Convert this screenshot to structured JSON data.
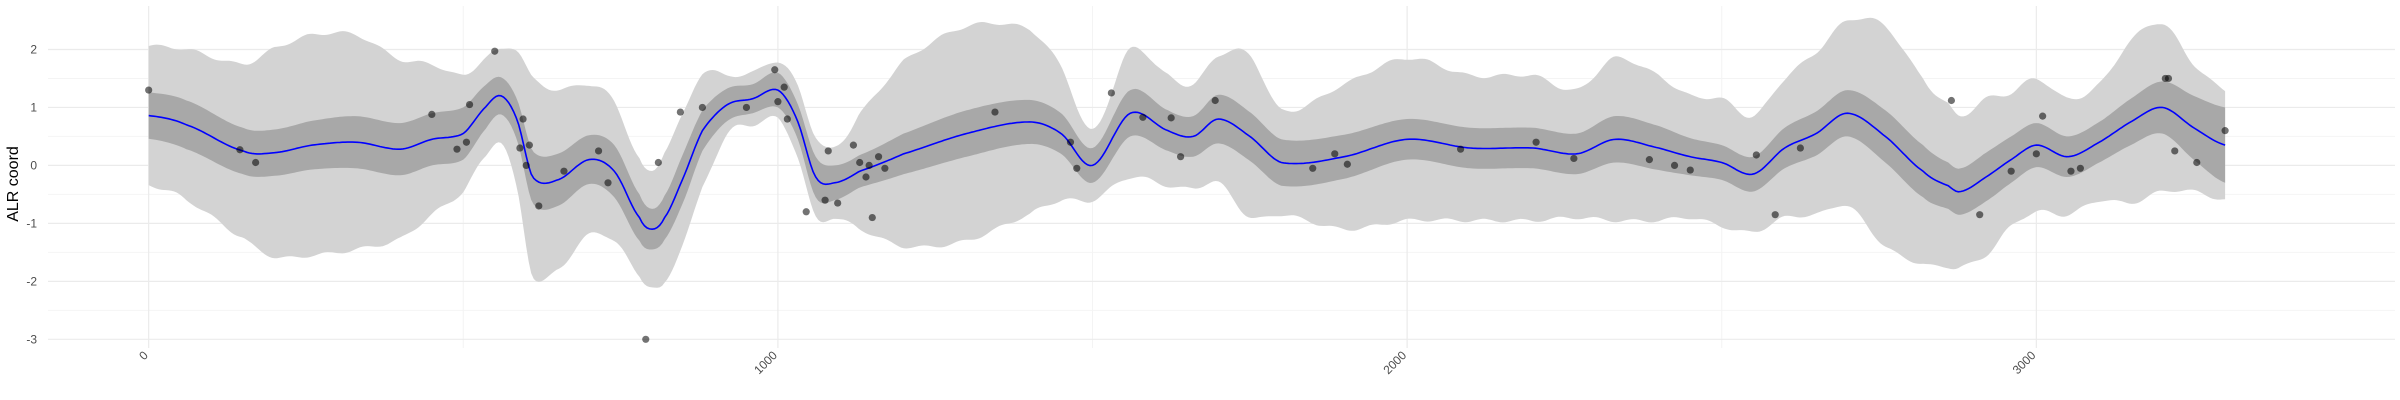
{
  "chart_data": {
    "type": "line",
    "title": "",
    "xlabel": "",
    "ylabel": "ALR coord",
    "xlim": [
      -160,
      3570
    ],
    "ylim": [
      -3.15,
      2.75
    ],
    "x_ticks": [
      0,
      1000,
      2000,
      3000
    ],
    "x_tick_labels": [
      "0",
      "1000",
      "2000",
      "3000"
    ],
    "y_ticks": [
      -3,
      -2,
      -1,
      0,
      1,
      2
    ],
    "y_tick_labels": [
      "-3",
      "-2",
      "-1",
      "0",
      "1",
      "2"
    ],
    "grid": true,
    "legend": "none",
    "colors": {
      "mean_line": "#0000ff",
      "inner_band": "#a8a8a8",
      "outer_band": "#d3d3d3",
      "points": "#000000",
      "grid_major": "#ebebeb",
      "grid_minor": "#f4f4f4"
    },
    "curve": {
      "x": [
        0,
        60,
        150,
        200,
        260,
        330,
        400,
        450,
        500,
        535,
        560,
        585,
        610,
        650,
        700,
        740,
        780,
        800,
        820,
        850,
        880,
        920,
        960,
        1000,
        1030,
        1060,
        1090,
        1130,
        1200,
        1300,
        1400,
        1450,
        1500,
        1560,
        1620,
        1660,
        1700,
        1750,
        1800,
        1900,
        2000,
        2100,
        2200,
        2270,
        2330,
        2400,
        2450,
        2500,
        2550,
        2600,
        2650,
        2700,
        2760,
        2820,
        2860,
        2880,
        2920,
        2960,
        3000,
        3050,
        3100,
        3150,
        3200,
        3250,
        3300
      ],
      "mean": [
        0.86,
        0.7,
        0.25,
        0.22,
        0.35,
        0.4,
        0.28,
        0.45,
        0.55,
        1.0,
        1.2,
        0.8,
        -0.2,
        -0.25,
        0.1,
        -0.1,
        -0.9,
        -1.1,
        -0.9,
        -0.2,
        0.6,
        1.05,
        1.15,
        1.3,
        0.8,
        -0.2,
        -0.3,
        -0.1,
        0.2,
        0.55,
        0.75,
        0.55,
        0.0,
        0.9,
        0.6,
        0.5,
        0.8,
        0.5,
        0.05,
        0.15,
        0.45,
        0.3,
        0.3,
        0.2,
        0.45,
        0.3,
        0.15,
        0.05,
        -0.15,
        0.3,
        0.55,
        0.9,
        0.5,
        -0.1,
        -0.35,
        -0.45,
        -0.2,
        0.1,
        0.35,
        0.15,
        0.4,
        0.75,
        1.0,
        0.65,
        0.35
      ],
      "inner_half_width": [
        0.4,
        0.42,
        0.4,
        0.4,
        0.42,
        0.45,
        0.45,
        0.45,
        0.45,
        0.38,
        0.32,
        0.35,
        0.45,
        0.45,
        0.42,
        0.45,
        0.4,
        0.35,
        0.38,
        0.42,
        0.35,
        0.28,
        0.25,
        0.3,
        0.3,
        0.35,
        0.3,
        0.28,
        0.35,
        0.4,
        0.38,
        0.35,
        0.3,
        0.4,
        0.35,
        0.35,
        0.42,
        0.42,
        0.4,
        0.38,
        0.35,
        0.35,
        0.35,
        0.35,
        0.4,
        0.38,
        0.32,
        0.3,
        0.3,
        0.35,
        0.38,
        0.4,
        0.45,
        0.45,
        0.4,
        0.4,
        0.42,
        0.4,
        0.38,
        0.35,
        0.35,
        0.4,
        0.45,
        0.55,
        0.65
      ],
      "outer_half_width": [
        1.2,
        1.3,
        1.5,
        1.8,
        1.9,
        1.85,
        1.55,
        1.3,
        1.0,
        0.85,
        0.8,
        1.2,
        1.7,
        1.55,
        1.3,
        1.2,
        1.0,
        1.0,
        1.15,
        1.1,
        1.0,
        0.5,
        0.45,
        0.5,
        0.6,
        0.7,
        0.6,
        1.0,
        1.6,
        1.85,
        1.6,
        1.15,
        0.6,
        1.1,
        0.95,
        0.9,
        1.1,
        1.4,
        0.9,
        1.25,
        1.4,
        1.25,
        1.25,
        1.1,
        1.4,
        1.25,
        1.05,
        1.1,
        1.0,
        1.2,
        1.4,
        1.6,
        1.9,
        1.6,
        1.4,
        1.3,
        1.35,
        1.15,
        1.15,
        1.0,
        1.0,
        1.4,
        1.45,
        1.1,
        0.95
      ]
    },
    "points": {
      "x": [
        0,
        145,
        170,
        450,
        490,
        505,
        510,
        550,
        590,
        595,
        600,
        605,
        620,
        660,
        715,
        730,
        790,
        810,
        845,
        880,
        950,
        995,
        1000,
        1010,
        1015,
        1045,
        1075,
        1080,
        1095,
        1120,
        1130,
        1140,
        1145,
        1150,
        1160,
        1170,
        1345,
        1465,
        1475,
        1530,
        1580,
        1625,
        1640,
        1695,
        1850,
        1885,
        1905,
        2085,
        2205,
        2265,
        2385,
        2425,
        2450,
        2555,
        2585,
        2625,
        2865,
        2910,
        2960,
        3000,
        3010,
        3055,
        3070,
        3205,
        3210,
        3220,
        3255,
        3300
      ],
      "y": [
        1.3,
        0.27,
        0.05,
        0.88,
        0.28,
        0.4,
        1.05,
        1.97,
        0.3,
        0.8,
        0.0,
        0.35,
        -0.7,
        -0.1,
        0.25,
        -0.3,
        -3.0,
        0.05,
        0.92,
        1.0,
        1.0,
        1.65,
        1.1,
        1.35,
        0.8,
        -0.8,
        -0.6,
        0.25,
        -0.65,
        0.35,
        0.05,
        -0.2,
        0.0,
        -0.9,
        0.15,
        -0.05,
        0.92,
        0.4,
        -0.05,
        1.25,
        0.83,
        0.82,
        0.15,
        1.12,
        -0.05,
        0.2,
        0.02,
        0.28,
        0.4,
        0.12,
        0.1,
        0.0,
        -0.08,
        0.18,
        -0.85,
        0.3,
        1.12,
        -0.85,
        -0.1,
        0.2,
        0.85,
        -0.1,
        -0.05,
        1.5,
        1.5,
        0.25,
        0.05,
        0.6
      ]
    }
  }
}
